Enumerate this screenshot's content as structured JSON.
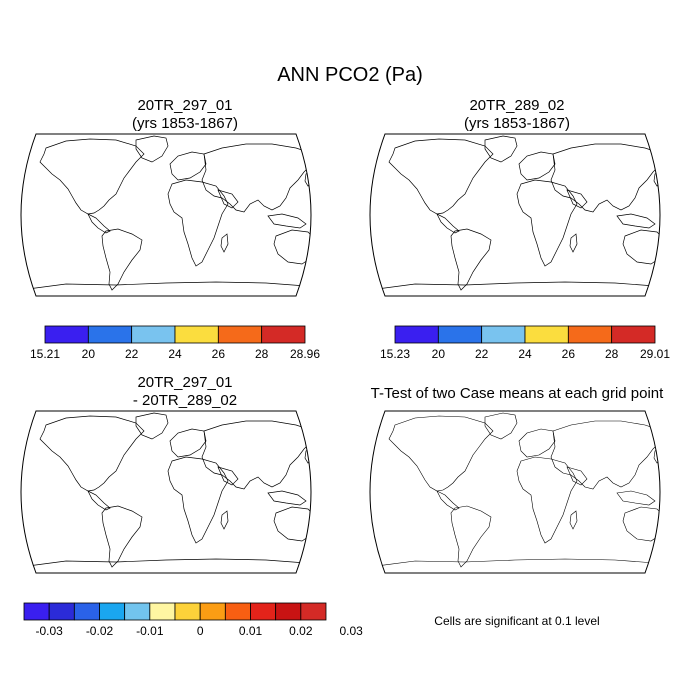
{
  "figure": {
    "title": "ANN PCO2 (Pa)"
  },
  "panels": [
    {
      "id": "case1",
      "title_line1": "20TR_297_01",
      "title_line2": "(yrs 1853-1867)",
      "colorbar": {
        "labels": [
          "15.21",
          "20",
          "22",
          "24",
          "26",
          "28",
          "28.96"
        ],
        "colors": [
          "#3a1ff0",
          "#2a73ea",
          "#79c3ef",
          "#fbdd3e",
          "#f56a1a",
          "#d42a26"
        ]
      }
    },
    {
      "id": "case2",
      "title_line1": "20TR_289_02",
      "title_line2": "(yrs 1853-1867)",
      "colorbar": {
        "labels": [
          "15.23",
          "20",
          "22",
          "24",
          "26",
          "28",
          "29.01"
        ],
        "colors": [
          "#3a1ff0",
          "#2a73ea",
          "#79c3ef",
          "#fbdd3e",
          "#f56a1a",
          "#d42a26"
        ]
      }
    },
    {
      "id": "difference",
      "title_line1": "20TR_297_01",
      "title_line2": "- 20TR_289_02",
      "colorbar": {
        "labels": [
          "-0.03",
          "-0.02",
          "-0.01",
          "0",
          "0.01",
          "0.02",
          "0.03"
        ],
        "colors": [
          "#3a1ff0",
          "#2b2bd8",
          "#2a62e8",
          "#1aa6f0",
          "#72c4ee",
          "#fff6a2",
          "#fdd23a",
          "#fb9d14",
          "#f85f12",
          "#e3231a",
          "#c81313",
          "#d42a26"
        ]
      }
    },
    {
      "id": "ttest",
      "title_line1": "T-Test of two Case means at each grid point",
      "note": "Cells are significant at 0.1 level",
      "significant_color": "#ff0000"
    }
  ]
}
